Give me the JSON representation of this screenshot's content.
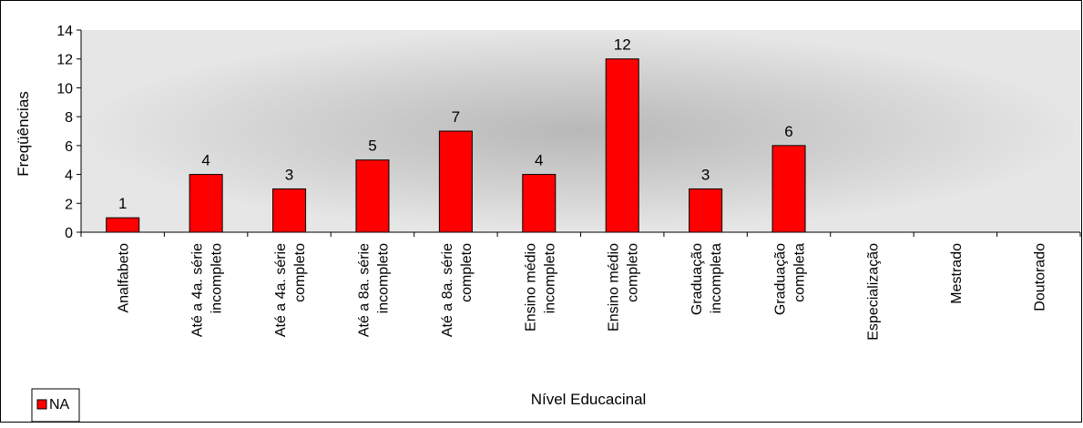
{
  "chart_data": {
    "type": "bar",
    "xlabel": "Nível Educacinal",
    "ylabel": "Freqüências",
    "ylim": [
      0,
      14
    ],
    "yticks": [
      0,
      2,
      4,
      6,
      8,
      10,
      12,
      14
    ],
    "grid": false,
    "legend_position": "bottom-left",
    "categories": [
      [
        "Analfabeto"
      ],
      [
        "Até a 4a. série",
        "incompleto"
      ],
      [
        "Até a 4a. série",
        "completo"
      ],
      [
        "Até a 8a. série",
        "incompleto"
      ],
      [
        "Até a 8a. série",
        "completo"
      ],
      [
        "Ensino médio",
        "incompleto"
      ],
      [
        "Ensino médio",
        "completo"
      ],
      [
        "Graduação",
        "incompleta"
      ],
      [
        "Graduação",
        "completa"
      ],
      [
        "Especialização"
      ],
      [
        "Mestrado"
      ],
      [
        "Doutorado"
      ]
    ],
    "series": [
      {
        "name": "NA",
        "color": "#ff0000",
        "values": [
          1,
          4,
          3,
          5,
          7,
          4,
          12,
          3,
          6,
          null,
          null,
          null
        ],
        "data_labels": [
          "1",
          "4",
          "3",
          "5",
          "7",
          "4",
          "12",
          "3",
          "6",
          "",
          "",
          ""
        ]
      }
    ]
  }
}
